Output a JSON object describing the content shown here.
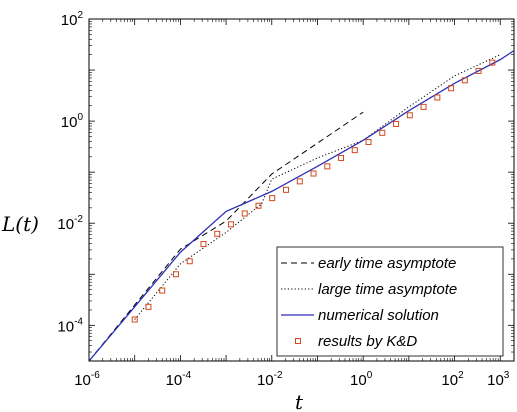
{
  "chart_data": {
    "type": "line",
    "xscale": "log",
    "yscale": "log",
    "xlim": [
      1e-06,
      2000
    ],
    "ylim": [
      2e-05,
      100
    ],
    "xticks": [
      {
        "base": "10",
        "exp": "-6",
        "value": 1e-06
      },
      {
        "base": "10",
        "exp": "-4",
        "value": 0.0001
      },
      {
        "base": "10",
        "exp": "-2",
        "value": 0.01
      },
      {
        "base": "10",
        "exp": "0",
        "value": 1
      },
      {
        "base": "10",
        "exp": "2",
        "value": 100
      },
      {
        "base": "10",
        "exp": "3",
        "value": 1000
      }
    ],
    "yticks": [
      {
        "base": "10",
        "exp": "-4",
        "value": 0.0001
      },
      {
        "base": "10",
        "exp": "-2",
        "value": 0.01
      },
      {
        "base": "10",
        "exp": "0",
        "value": 1
      },
      {
        "base": "10",
        "exp": "2",
        "value": 100
      }
    ],
    "xlabel": "t",
    "ylabel": "L(t)",
    "grid": false,
    "legend_position": "bottom-right",
    "series": [
      {
        "name": "early time asymptote",
        "style": "dashed",
        "color": "#000000",
        "x": [
          1e-06,
          1e-05,
          0.0001,
          0.001,
          0.01,
          0.1,
          1.0
        ],
        "y": [
          2e-05,
          0.00025,
          0.0031,
          0.011,
          0.092,
          0.37,
          1.5
        ]
      },
      {
        "name": "large time asymptote",
        "style": "dotted",
        "color": "#000000",
        "x": [
          1e-05,
          0.0001,
          0.001,
          0.006,
          0.01,
          0.1,
          1.0,
          10,
          100,
          1000
        ],
        "y": [
          0.00013,
          0.0016,
          0.0066,
          0.024,
          0.073,
          0.19,
          0.42,
          1.9,
          7.7,
          20
        ]
      },
      {
        "name": "numerical solution",
        "style": "solid",
        "color": "#2f2fb8",
        "x": [
          1e-06,
          1e-05,
          0.0001,
          0.001,
          0.01,
          0.1,
          1.0,
          10,
          100,
          1000,
          2000
        ],
        "y": [
          2e-05,
          0.00023,
          0.0027,
          0.017,
          0.042,
          0.13,
          0.42,
          1.6,
          5.5,
          16,
          24
        ]
      },
      {
        "name": "results by K&D",
        "style": "markers",
        "color": "#d04a1e",
        "x": [
          1e-05,
          2e-05,
          4e-05,
          8e-05,
          0.00016,
          0.00032,
          0.00064,
          0.00128,
          0.00256,
          0.00512,
          0.0102,
          0.0205,
          0.041,
          0.082,
          0.164,
          0.328,
          0.655,
          1.31,
          2.62,
          5.24,
          10.5,
          21,
          42,
          84,
          168,
          335,
          671
        ],
        "y": [
          0.00013,
          0.00023,
          0.00048,
          0.001,
          0.0018,
          0.0039,
          0.0062,
          0.0095,
          0.0155,
          0.022,
          0.031,
          0.045,
          0.066,
          0.094,
          0.13,
          0.19,
          0.27,
          0.39,
          0.59,
          0.88,
          1.3,
          1.9,
          2.9,
          4.4,
          6.3,
          9.6,
          14
        ]
      }
    ]
  }
}
